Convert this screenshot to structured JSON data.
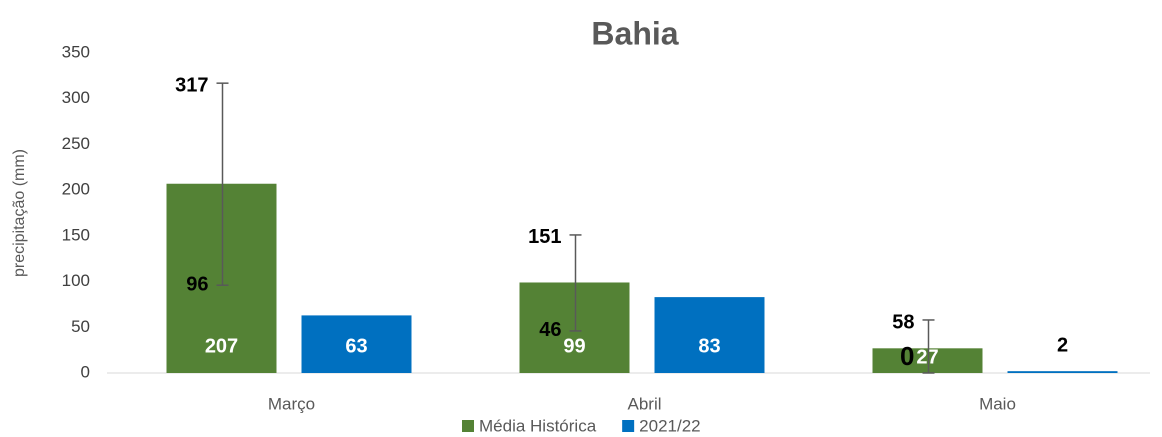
{
  "chart_data": {
    "type": "bar",
    "title": "Bahia",
    "y_label": "precipitação (mm)",
    "categories": [
      "Março",
      "Abril",
      "Maio"
    ],
    "series": [
      {
        "name": "Média Histórica",
        "color": "#548235",
        "values": [
          207,
          99,
          27
        ],
        "error_low": [
          96,
          46,
          0
        ],
        "error_high": [
          317,
          151,
          58
        ]
      },
      {
        "name": "2021/22",
        "color": "#0070c0",
        "values": [
          63,
          83,
          2
        ]
      }
    ],
    "ylim": [
      0,
      350
    ],
    "yticks": [
      0,
      50,
      100,
      150,
      200,
      250,
      300,
      350
    ],
    "grid": false,
    "legend": "bottom"
  }
}
